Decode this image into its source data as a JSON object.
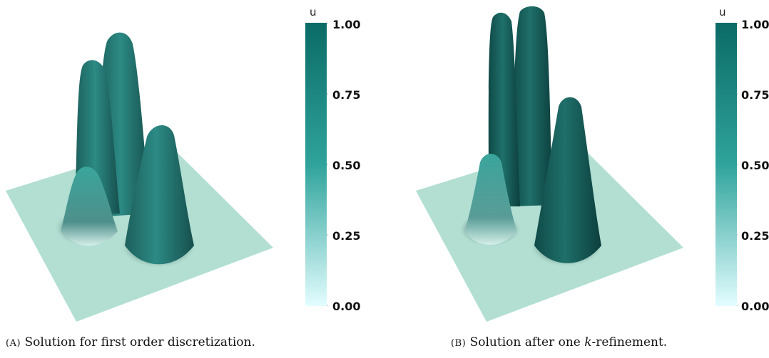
{
  "figure": {
    "colorbar_title": "u",
    "colorbar_ticks": [
      "1.00",
      "0.75",
      "0.50",
      "0.25",
      "0.00"
    ],
    "colors": {
      "max": "#0b6b66",
      "mid": "#2fa39b",
      "min": "#e3fdff",
      "plane": "#b2dfd2"
    },
    "panels": [
      {
        "label": "(A)",
        "caption_pre": "Solution for first order discretization.",
        "caption_k": "",
        "caption_post": ""
      },
      {
        "label": "(B)",
        "caption_pre": "Solution after one ",
        "caption_k": "k",
        "caption_post": "-refinement."
      }
    ]
  }
}
